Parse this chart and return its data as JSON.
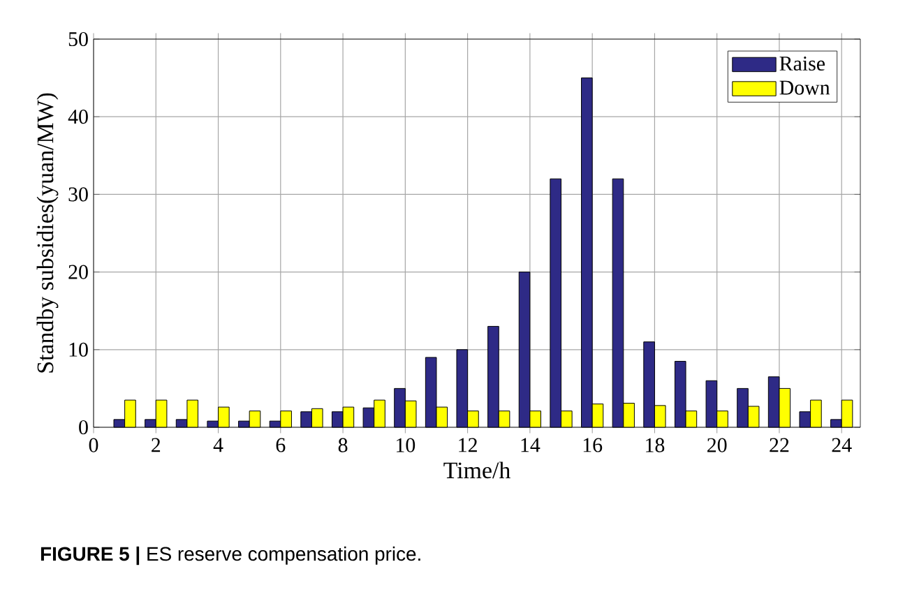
{
  "chart_data": {
    "type": "bar",
    "xlabel": "Time/h",
    "ylabel": "Standby subsidies(yuan/MW)",
    "annotations": [
      "**FIGURE 5 |** ES reserve compensation price."
    ],
    "x": [
      1,
      2,
      3,
      4,
      5,
      6,
      7,
      8,
      9,
      10,
      11,
      12,
      13,
      14,
      15,
      16,
      17,
      18,
      19,
      20,
      21,
      22,
      23,
      24
    ],
    "series": [
      {
        "name": "Raise",
        "color": "#2e2a86",
        "values": [
          1,
          1,
          1,
          0.8,
          0.8,
          0.8,
          2,
          2,
          2.5,
          5,
          9,
          10,
          13,
          20,
          32,
          45,
          32,
          11,
          8.5,
          6,
          5,
          6.5,
          2,
          1
        ]
      },
      {
        "name": "Down",
        "color": "#ffff00",
        "values": [
          3.5,
          3.5,
          3.5,
          2.6,
          2.1,
          2.1,
          2.4,
          2.6,
          3.5,
          3.4,
          2.6,
          2.1,
          2.1,
          2.1,
          2.1,
          3,
          3.1,
          2.8,
          2.1,
          2.1,
          2.7,
          5,
          3.5,
          3.5
        ]
      }
    ],
    "xlim": [
      0,
      24.6
    ],
    "xticks": [
      0,
      2,
      4,
      6,
      8,
      10,
      12,
      14,
      16,
      18,
      20,
      22,
      24
    ],
    "ylim": [
      0,
      50
    ],
    "yticks": [
      0,
      10,
      20,
      30,
      40,
      50
    ],
    "grid": true,
    "legend": "top right"
  }
}
